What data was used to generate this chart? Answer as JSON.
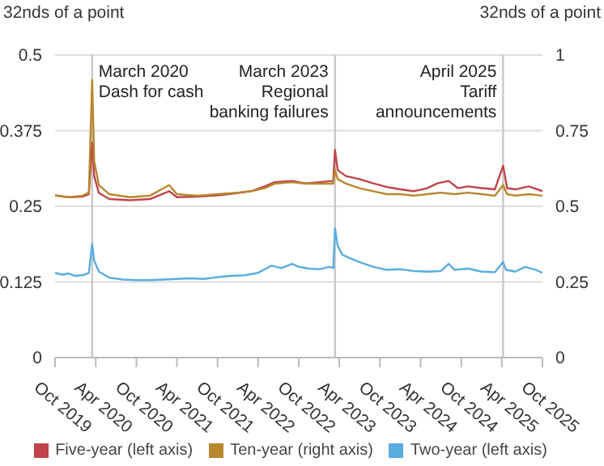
{
  "chart_data": {
    "type": "line",
    "ylabel": "32nds of a point",
    "y2label": "32nds of a point",
    "xlim": [
      "2019-10",
      "2025-10"
    ],
    "xticks": [
      {
        "value": "2019-10",
        "label": "Oct 2019"
      },
      {
        "value": "2020-04",
        "label": "Apr 2020"
      },
      {
        "value": "2020-10",
        "label": "Oct 2020"
      },
      {
        "value": "2021-04",
        "label": "Apr 2021"
      },
      {
        "value": "2021-10",
        "label": "Oct 2021"
      },
      {
        "value": "2022-04",
        "label": "Apr 2022"
      },
      {
        "value": "2022-10",
        "label": "Oct 2022"
      },
      {
        "value": "2023-04",
        "label": "Apr 2023"
      },
      {
        "value": "2023-10",
        "label": "Oct 2023"
      },
      {
        "value": "2024-04",
        "label": "Apr 2024"
      },
      {
        "value": "2024-10",
        "label": "Oct 2024"
      },
      {
        "value": "2025-04",
        "label": "Apr 2025"
      },
      {
        "value": "2025-10",
        "label": "Oct 2025"
      }
    ],
    "ylim": [
      0,
      0.5
    ],
    "yticks": [
      0,
      0.125,
      0.25,
      0.375,
      0.5
    ],
    "y2lim": [
      0,
      1
    ],
    "y2ticks": [
      0,
      0.25,
      0.5,
      0.75,
      1
    ],
    "grid": "y",
    "legend": "bottom",
    "marker": "none",
    "line_style": "solid",
    "ref_lines": [
      {
        "axis": "x",
        "value": "2020-03-16",
        "label": "March 2020\nDash for cash",
        "color": "#c8c8c8"
      },
      {
        "axis": "x",
        "value": "2023-03-13",
        "label": "March 2023\nRegional\nbanking failures",
        "color": "#c8c8c8"
      },
      {
        "axis": "x",
        "value": "2025-04-07",
        "label": "April 2025\nTariff\nannouncements",
        "color": "#c8c8c8"
      }
    ],
    "series": [
      {
        "name": "Two-year (left axis)",
        "color": "#5aade0",
        "x": [
          "2019-10-01",
          "2019-11-01",
          "2019-12-01",
          "2020-01-01",
          "2020-02-01",
          "2020-03-01",
          "2020-03-16",
          "2020-03-25",
          "2020-04-15",
          "2020-06-01",
          "2020-08-01",
          "2020-10-01",
          "2020-12-01",
          "2021-02-01",
          "2021-04-01",
          "2021-06-01",
          "2021-08-01",
          "2021-10-01",
          "2021-12-01",
          "2022-02-01",
          "2022-04-01",
          "2022-06-01",
          "2022-07-15",
          "2022-09-01",
          "2022-10-01",
          "2022-11-15",
          "2023-01-01",
          "2023-02-15",
          "2023-03-05",
          "2023-03-13",
          "2023-03-25",
          "2023-04-15",
          "2023-05-15",
          "2023-07-01",
          "2023-09-01",
          "2023-11-01",
          "2024-01-01",
          "2024-03-01",
          "2024-05-01",
          "2024-07-01",
          "2024-08-05",
          "2024-09-01",
          "2024-11-01",
          "2025-01-01",
          "2025-03-01",
          "2025-04-07",
          "2025-04-20",
          "2025-06-01",
          "2025-07-15",
          "2025-09-01",
          "2025-10-01"
        ],
        "values": [
          0.14,
          0.137,
          0.139,
          0.135,
          0.136,
          0.14,
          0.188,
          0.16,
          0.142,
          0.132,
          0.129,
          0.128,
          0.128,
          0.129,
          0.13,
          0.131,
          0.13,
          0.133,
          0.135,
          0.136,
          0.14,
          0.152,
          0.148,
          0.155,
          0.15,
          0.147,
          0.146,
          0.15,
          0.148,
          0.214,
          0.185,
          0.17,
          0.165,
          0.158,
          0.15,
          0.145,
          0.146,
          0.143,
          0.142,
          0.143,
          0.155,
          0.145,
          0.147,
          0.142,
          0.141,
          0.158,
          0.145,
          0.142,
          0.15,
          0.145,
          0.14
        ]
      },
      {
        "name": "Five-year (left axis)",
        "color": "#c0444a",
        "x": [
          "2019-10-01",
          "2019-12-01",
          "2020-02-01",
          "2020-03-01",
          "2020-03-16",
          "2020-03-25",
          "2020-04-15",
          "2020-06-01",
          "2020-09-01",
          "2020-12-01",
          "2021-02-25",
          "2021-04-01",
          "2021-07-01",
          "2021-10-01",
          "2022-01-01",
          "2022-03-01",
          "2022-05-01",
          "2022-06-15",
          "2022-09-01",
          "2022-11-01",
          "2023-01-01",
          "2023-03-05",
          "2023-03-13",
          "2023-03-25",
          "2023-05-01",
          "2023-07-01",
          "2023-09-01",
          "2023-11-01",
          "2024-01-01",
          "2024-03-01",
          "2024-05-01",
          "2024-06-15",
          "2024-08-05",
          "2024-09-15",
          "2024-11-01",
          "2025-01-01",
          "2025-03-01",
          "2025-04-07",
          "2025-04-25",
          "2025-06-01",
          "2025-08-01",
          "2025-10-01"
        ],
        "values": [
          0.268,
          0.265,
          0.266,
          0.27,
          0.355,
          0.3,
          0.272,
          0.262,
          0.26,
          0.262,
          0.275,
          0.265,
          0.266,
          0.268,
          0.272,
          0.275,
          0.283,
          0.29,
          0.292,
          0.288,
          0.29,
          0.292,
          0.343,
          0.31,
          0.3,
          0.295,
          0.288,
          0.282,
          0.278,
          0.275,
          0.28,
          0.288,
          0.292,
          0.28,
          0.283,
          0.28,
          0.278,
          0.317,
          0.28,
          0.278,
          0.283,
          0.275
        ]
      },
      {
        "name": "Ten-year (right axis)",
        "color": "#b8862e",
        "axis": "y2",
        "x": [
          "2019-10-01",
          "2019-12-01",
          "2020-02-01",
          "2020-03-01",
          "2020-03-16",
          "2020-03-25",
          "2020-04-15",
          "2020-06-01",
          "2020-09-01",
          "2020-12-01",
          "2021-02-25",
          "2021-04-01",
          "2021-07-01",
          "2021-10-01",
          "2022-01-01",
          "2022-03-01",
          "2022-05-01",
          "2022-06-15",
          "2022-09-01",
          "2022-11-01",
          "2023-01-01",
          "2023-03-05",
          "2023-03-13",
          "2023-03-25",
          "2023-05-01",
          "2023-07-01",
          "2023-09-01",
          "2023-11-01",
          "2024-01-01",
          "2024-03-01",
          "2024-05-01",
          "2024-07-01",
          "2024-09-01",
          "2024-11-01",
          "2025-01-01",
          "2025-03-01",
          "2025-04-07",
          "2025-04-25",
          "2025-06-01",
          "2025-08-01",
          "2025-10-01"
        ],
        "values": [
          0.535,
          0.53,
          0.535,
          0.545,
          0.918,
          0.65,
          0.57,
          0.54,
          0.53,
          0.535,
          0.57,
          0.54,
          0.535,
          0.54,
          0.545,
          0.55,
          0.56,
          0.575,
          0.58,
          0.575,
          0.575,
          0.575,
          0.62,
          0.59,
          0.575,
          0.56,
          0.55,
          0.54,
          0.54,
          0.535,
          0.54,
          0.545,
          0.54,
          0.545,
          0.54,
          0.535,
          0.57,
          0.54,
          0.535,
          0.54,
          0.535
        ]
      }
    ]
  }
}
